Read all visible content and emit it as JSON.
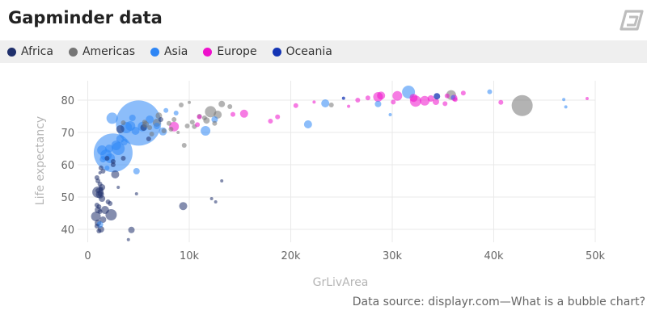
{
  "header": {
    "title": "Gapminder data",
    "logo_icon": "displayr-logo-icon"
  },
  "legend": {
    "items": [
      {
        "label": "Africa",
        "color": "#1f2f6b"
      },
      {
        "label": "Americas",
        "color": "#757575"
      },
      {
        "label": "Asia",
        "color": "#2e86f5"
      },
      {
        "label": "Europe",
        "color": "#ee11cc"
      },
      {
        "label": "Oceania",
        "color": "#1434b4"
      }
    ]
  },
  "footer": {
    "source": "Data source: displayr.com—What is a bubble chart?"
  },
  "chart_data": {
    "type": "scatter",
    "xlabel": "GrLivArea",
    "ylabel": "Life expectancy",
    "xlim": [
      -1000,
      50000
    ],
    "ylim": [
      36,
      86
    ],
    "x_ticks": [
      0,
      10000,
      20000,
      30000,
      40000,
      50000
    ],
    "x_tick_labels": [
      "0",
      "10k",
      "20k",
      "30k",
      "40k",
      "50k"
    ],
    "y_ticks": [
      40,
      50,
      60,
      70,
      80
    ],
    "y_tick_labels": [
      "40",
      "50",
      "60",
      "70",
      "80"
    ],
    "grid": true,
    "legend_position": "top",
    "series": [
      {
        "name": "Africa",
        "color": "#1f2f6b",
        "opacity": 0.55,
        "points": [
          [
            1000,
            51.5,
            7
          ],
          [
            1200,
            50.8,
            5
          ],
          [
            1400,
            49.5,
            4
          ],
          [
            800,
            44,
            6
          ],
          [
            2300,
            44.5,
            7
          ],
          [
            900,
            47.5,
            3
          ],
          [
            1100,
            47,
            3
          ],
          [
            1000,
            46,
            4
          ],
          [
            1200,
            45.5,
            3
          ],
          [
            1500,
            43,
            4
          ],
          [
            1700,
            46,
            5
          ],
          [
            2000,
            48.5,
            3
          ],
          [
            2200,
            48,
            3
          ],
          [
            1000,
            42,
            4
          ],
          [
            1300,
            40,
            4
          ],
          [
            1100,
            39.5,
            3
          ],
          [
            900,
            56,
            3
          ],
          [
            1000,
            55,
            3
          ],
          [
            1200,
            54,
            3
          ],
          [
            1400,
            53,
            4
          ],
          [
            1000,
            52,
            3
          ],
          [
            1500,
            58,
            3
          ],
          [
            1300,
            59,
            3
          ],
          [
            2700,
            57,
            5
          ],
          [
            1200,
            57.5,
            2
          ],
          [
            900,
            41,
            3
          ],
          [
            1300,
            52.5,
            3
          ],
          [
            1200,
            51,
            3
          ],
          [
            4300,
            39.8,
            4
          ],
          [
            4000,
            36.8,
            2
          ],
          [
            9400,
            47.2,
            5
          ],
          [
            12200,
            49.5,
            2
          ],
          [
            12600,
            48.5,
            2
          ],
          [
            13200,
            55,
            2
          ],
          [
            4800,
            51,
            2
          ],
          [
            3000,
            53,
            2
          ],
          [
            2500,
            60,
            3
          ],
          [
            3500,
            62,
            3
          ],
          [
            6000,
            68,
            3
          ],
          [
            7200,
            74,
            3
          ],
          [
            5500,
            71.5,
            4
          ],
          [
            3200,
            71,
            5
          ],
          [
            2500,
            61,
            3
          ],
          [
            1900,
            62,
            3
          ]
        ]
      },
      {
        "name": "Americas",
        "color": "#757575",
        "opacity": 0.55,
        "points": [
          [
            42800,
            78.3,
            13
          ],
          [
            12100,
            76.4,
            7
          ],
          [
            12800,
            75.5,
            5
          ],
          [
            13200,
            78.8,
            4
          ],
          [
            9200,
            78.5,
            3
          ],
          [
            10000,
            79.3,
            2
          ],
          [
            11000,
            75,
            3
          ],
          [
            7000,
            75.2,
            4
          ],
          [
            6800,
            73,
            5
          ],
          [
            5700,
            72.5,
            4
          ],
          [
            8000,
            72.8,
            3
          ],
          [
            7500,
            70.5,
            3
          ],
          [
            10300,
            73.2,
            3
          ],
          [
            11700,
            73.7,
            4
          ],
          [
            9800,
            72,
            3
          ],
          [
            6100,
            71.5,
            3
          ],
          [
            6300,
            69.5,
            3
          ],
          [
            35800,
            81.6,
            6
          ],
          [
            24000,
            78.5,
            3
          ],
          [
            14000,
            78,
            3
          ],
          [
            8500,
            74,
            3
          ],
          [
            8200,
            71,
            3
          ],
          [
            5600,
            73.2,
            3
          ],
          [
            10500,
            71.8,
            3
          ],
          [
            8900,
            70,
            2
          ],
          [
            3500,
            73,
            3
          ],
          [
            9500,
            66,
            3
          ],
          [
            11500,
            74.5,
            3
          ],
          [
            12500,
            72.8,
            3
          ]
        ]
      },
      {
        "name": "Asia",
        "color": "#2e86f5",
        "opacity": 0.55,
        "points": [
          [
            5000,
            72.9,
            28
          ],
          [
            2500,
            63.7,
            24
          ],
          [
            1400,
            64.5,
            6
          ],
          [
            1800,
            63,
            7
          ],
          [
            2200,
            62,
            6
          ],
          [
            3000,
            65,
            8
          ],
          [
            2400,
            74.4,
            7
          ],
          [
            3800,
            71.5,
            7
          ],
          [
            4200,
            72,
            6
          ],
          [
            4700,
            70.5,
            5
          ],
          [
            5400,
            71.8,
            6
          ],
          [
            6100,
            74,
            5
          ],
          [
            7400,
            70.3,
            5
          ],
          [
            7700,
            76.8,
            3
          ],
          [
            11600,
            70.5,
            6
          ],
          [
            12500,
            74,
            4
          ],
          [
            4800,
            58,
            4
          ],
          [
            1500,
            61.7,
            4
          ],
          [
            1900,
            59,
            3
          ],
          [
            1200,
            41.5,
            4
          ],
          [
            2100,
            65,
            5
          ],
          [
            2800,
            66,
            6
          ],
          [
            3200,
            68,
            5
          ],
          [
            3600,
            67,
            4
          ],
          [
            6800,
            72,
            4
          ],
          [
            21700,
            72.5,
            5
          ],
          [
            23400,
            79,
            5
          ],
          [
            28600,
            78.8,
            4
          ],
          [
            31600,
            82.5,
            8
          ],
          [
            36000,
            80.8,
            3
          ],
          [
            39600,
            82.6,
            3
          ],
          [
            46900,
            80.2,
            2
          ],
          [
            47100,
            77.9,
            2
          ],
          [
            29800,
            75.5,
            2
          ],
          [
            4400,
            74.5,
            4
          ],
          [
            8700,
            76,
            3
          ]
        ]
      },
      {
        "name": "Europe",
        "color": "#ee11cc",
        "opacity": 0.55,
        "points": [
          [
            8500,
            71.8,
            6
          ],
          [
            10800,
            72.4,
            3
          ],
          [
            11000,
            74.8,
            3
          ],
          [
            15400,
            75.8,
            5
          ],
          [
            14300,
            75.6,
            3
          ],
          [
            18000,
            73.5,
            3
          ],
          [
            18700,
            74.8,
            3
          ],
          [
            20500,
            78.3,
            3
          ],
          [
            26600,
            80,
            3
          ],
          [
            27600,
            80.7,
            3
          ],
          [
            28600,
            81,
            6
          ],
          [
            28900,
            81.4,
            5
          ],
          [
            30500,
            81.3,
            6
          ],
          [
            32100,
            80.7,
            5
          ],
          [
            32300,
            79.7,
            7
          ],
          [
            33200,
            79.8,
            6
          ],
          [
            33800,
            80.5,
            4
          ],
          [
            34300,
            79.5,
            4
          ],
          [
            35200,
            78.9,
            3
          ],
          [
            36100,
            80.7,
            4
          ],
          [
            36200,
            80.2,
            3
          ],
          [
            37000,
            82.2,
            3
          ],
          [
            40700,
            79.3,
            3
          ],
          [
            49200,
            80.5,
            2
          ],
          [
            25700,
            78.1,
            2
          ],
          [
            22300,
            79.4,
            2
          ],
          [
            30100,
            79.4,
            3
          ],
          [
            35400,
            81.3,
            3
          ]
        ]
      },
      {
        "name": "Oceania",
        "color": "#1434b4",
        "opacity": 0.75,
        "points": [
          [
            25200,
            80.6,
            2
          ],
          [
            34400,
            81.2,
            4
          ]
        ]
      }
    ]
  }
}
